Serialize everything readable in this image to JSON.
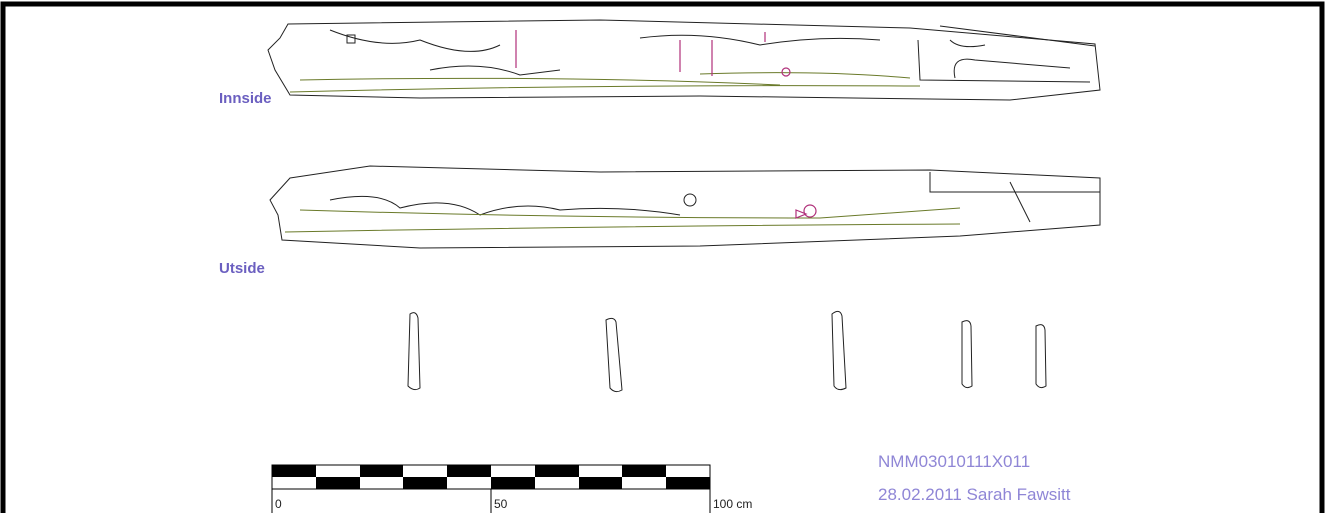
{
  "labels": {
    "inside": "Innside",
    "outside": "Utside"
  },
  "scale_bar": {
    "start": "0",
    "middle": "50",
    "end": "100 cm"
  },
  "caption": {
    "id": "NMM03010111X011",
    "credit": "28.02.2011 Sarah Fawsitt"
  }
}
